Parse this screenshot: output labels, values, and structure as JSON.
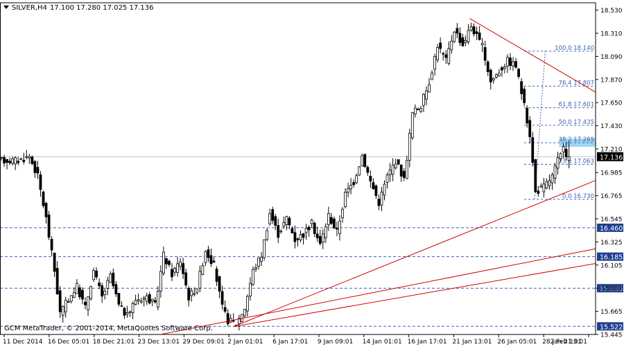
{
  "header": {
    "symbol_label": "SILVER,H4",
    "ohlc_label": "17.100 17.280 17.025 17.136"
  },
  "copyright": "GCM MetaTrader, © 2001-2014, MetaQuotes Software Corp.",
  "colors": {
    "candle": "#000000",
    "level_line": "#3a5fb5",
    "fib_text": "#3a5fb5",
    "trendline": "#d40000",
    "badge_bg": "#1f3f8f",
    "badge_text": "#ffffff",
    "price_badge_bg": "#000000",
    "fib_box": "#9fd6f2"
  },
  "chart_data": {
    "type": "candlestick",
    "symbol": "SILVER",
    "timeframe": "H4",
    "ylim": [
      15.445,
      18.6
    ],
    "y_ticks": [
      "18.530",
      "18.310",
      "18.090",
      "17.870",
      "17.650",
      "17.430",
      "17.210",
      "16.985",
      "16.765",
      "16.545",
      "16.325",
      "16.105",
      "15.885",
      "15.665",
      "15.445"
    ],
    "x_ticks": [
      "11 Dec 2014",
      "16 Dec 05:01",
      "18 Dec 21:01",
      "23 Dec 13:01",
      "29 Dec 09:01",
      "2 Jan 01:01",
      "6 Jan 17:01",
      "9 Jan 09:01",
      "14 Jan 01:01",
      "16 Jan 17:01",
      "21 Jan 13:01",
      "26 Jan 05:01",
      "28 Jan 21:01",
      "2 Feb 13:01"
    ],
    "current_price": 17.136,
    "horizontal_levels": [
      {
        "label": "16.460",
        "value": 16.46
      },
      {
        "label": "16.185",
        "value": 16.185
      },
      {
        "label": "15.885",
        "value": 15.885
      },
      {
        "label": "15.522",
        "value": 15.522
      }
    ],
    "fibonacci": [
      {
        "label": "100.0 18.140",
        "value": 18.14
      },
      {
        "label": "76.4 17.807",
        "value": 17.807
      },
      {
        "label": "61.8 17.601",
        "value": 17.601
      },
      {
        "label": "50.0 17.435",
        "value": 17.435
      },
      {
        "label": "38.2 17.269",
        "value": 17.269
      },
      {
        "label": "23.6 17.063",
        "value": 17.063
      },
      {
        "label": "0.0 16.730",
        "value": 16.73
      }
    ],
    "candle_waypoints": [
      [
        0,
        17.1
      ],
      [
        6,
        17.1
      ],
      [
        10,
        17.14
      ],
      [
        13,
        16.95
      ],
      [
        16,
        16.55
      ],
      [
        19,
        16.05
      ],
      [
        21,
        15.65
      ],
      [
        24,
        15.78
      ],
      [
        27,
        15.9
      ],
      [
        30,
        15.7
      ],
      [
        33,
        16.05
      ],
      [
        36,
        15.8
      ],
      [
        39,
        16.0
      ],
      [
        42,
        15.72
      ],
      [
        45,
        15.62
      ],
      [
        48,
        15.78
      ],
      [
        52,
        15.8
      ],
      [
        55,
        15.72
      ],
      [
        58,
        16.2
      ],
      [
        61,
        16.02
      ],
      [
        64,
        16.15
      ],
      [
        67,
        15.8
      ],
      [
        70,
        15.9
      ],
      [
        73,
        16.25
      ],
      [
        76,
        16.1
      ],
      [
        79,
        15.7
      ],
      [
        81,
        15.58
      ],
      [
        84,
        15.55
      ],
      [
        87,
        15.7
      ],
      [
        90,
        16.05
      ],
      [
        93,
        16.2
      ],
      [
        96,
        16.6
      ],
      [
        99,
        16.4
      ],
      [
        102,
        16.55
      ],
      [
        105,
        16.35
      ],
      [
        108,
        16.4
      ],
      [
        111,
        16.5
      ],
      [
        114,
        16.3
      ],
      [
        117,
        16.58
      ],
      [
        120,
        16.42
      ],
      [
        123,
        16.78
      ],
      [
        126,
        16.9
      ],
      [
        129,
        17.15
      ],
      [
        132,
        16.9
      ],
      [
        135,
        16.7
      ],
      [
        138,
        16.95
      ],
      [
        141,
        17.1
      ],
      [
        144,
        16.92
      ],
      [
        147,
        17.55
      ],
      [
        150,
        17.62
      ],
      [
        153,
        17.85
      ],
      [
        156,
        18.2
      ],
      [
        159,
        18.05
      ],
      [
        162,
        18.35
      ],
      [
        165,
        18.2
      ],
      [
        168,
        18.38
      ],
      [
        170,
        18.28
      ],
      [
        172,
        18.18
      ],
      [
        175,
        17.85
      ],
      [
        178,
        17.95
      ],
      [
        181,
        18.05
      ],
      [
        184,
        18.0
      ],
      [
        186,
        17.75
      ],
      [
        189,
        17.35
      ],
      [
        191,
        16.8
      ],
      [
        194,
        16.85
      ],
      [
        197,
        16.95
      ],
      [
        199,
        17.1
      ],
      [
        201,
        17.2
      ],
      [
        203,
        17.136
      ]
    ],
    "trendlines": [
      {
        "x0": 83.5,
        "y0": 15.52,
        "x1": 213,
        "y1": 16.91
      },
      {
        "x0": 83.5,
        "y0": 15.52,
        "x1": 213,
        "y1": 16.12
      },
      {
        "x0": 58,
        "y0": 15.448,
        "x1": 213,
        "y1": 16.26
      },
      {
        "x0": 168,
        "y0": 18.45,
        "x1": 213,
        "y1": 17.75
      }
    ]
  }
}
